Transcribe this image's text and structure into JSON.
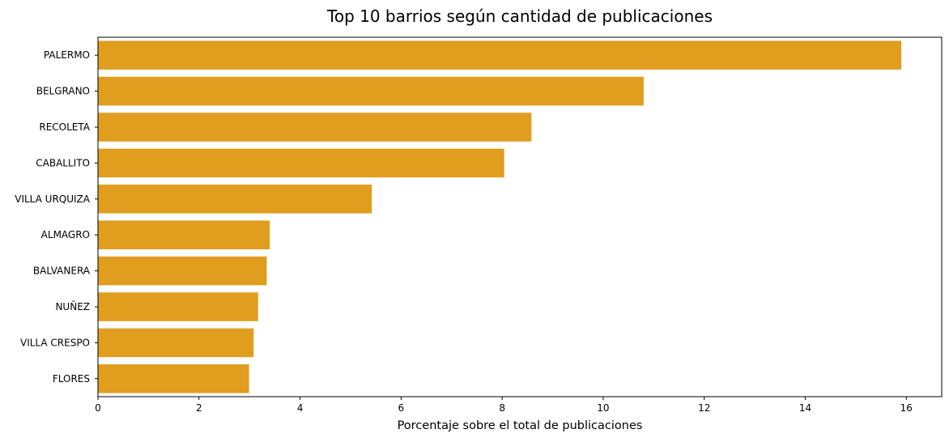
{
  "chart_data": {
    "type": "bar",
    "orientation": "horizontal",
    "title": "Top 10 barrios según cantidad de publicaciones",
    "xlabel": "Porcentaje sobre el total de publicaciones",
    "ylabel": "",
    "categories": [
      "PALERMO",
      "BELGRANO",
      "RECOLETA",
      "CABALLITO",
      "VILLA URQUIZA",
      "ALMAGRO",
      "BALVANERA",
      "NUÑEZ",
      "VILLA CRESPO",
      "FLORES"
    ],
    "values": [
      15.9,
      10.8,
      8.58,
      8.04,
      5.42,
      3.4,
      3.34,
      3.17,
      3.08,
      2.99
    ],
    "xlim": [
      0,
      16.7
    ],
    "xticks": [
      0,
      2,
      4,
      6,
      8,
      10,
      12,
      14,
      16
    ],
    "grid": false,
    "legend": "none",
    "bar_color": "#E09D1E"
  }
}
